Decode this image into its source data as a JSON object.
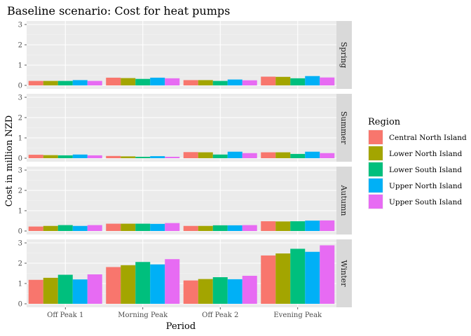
{
  "chart_data": {
    "type": "bar",
    "title": "Baseline scenario: Cost for heat pumps",
    "xlabel": "Period",
    "ylabel": "Cost in million NZD",
    "categories": [
      "Off Peak 1",
      "Morning Peak",
      "Off Peak 2",
      "Evening Peak"
    ],
    "facets": [
      "Spring",
      "Summer",
      "Autumn",
      "Winter"
    ],
    "legend_title": "Region",
    "legend_position": "right",
    "ylim": [
      0,
      3
    ],
    "yticks": [
      0,
      1,
      2,
      3
    ],
    "grid": true,
    "series": [
      {
        "name": "Central North Island",
        "color": "#F8766D",
        "values": {
          "Spring": [
            0.22,
            0.38,
            0.26,
            0.43
          ],
          "Summer": [
            0.17,
            0.11,
            0.3,
            0.29
          ],
          "Autumn": [
            0.22,
            0.36,
            0.25,
            0.48
          ],
          "Winter": [
            1.18,
            1.81,
            1.15,
            2.38
          ]
        }
      },
      {
        "name": "Lower North Island",
        "color": "#A3A500",
        "values": {
          "Spring": [
            0.22,
            0.36,
            0.26,
            0.42
          ],
          "Summer": [
            0.15,
            0.09,
            0.29,
            0.29
          ],
          "Autumn": [
            0.25,
            0.36,
            0.25,
            0.47
          ],
          "Winter": [
            1.28,
            1.9,
            1.22,
            2.48
          ]
        }
      },
      {
        "name": "Lower South Island",
        "color": "#00BF7D",
        "values": {
          "Spring": [
            0.22,
            0.32,
            0.22,
            0.35
          ],
          "Summer": [
            0.14,
            0.07,
            0.18,
            0.21
          ],
          "Autumn": [
            0.29,
            0.36,
            0.28,
            0.48
          ],
          "Winter": [
            1.43,
            2.06,
            1.31,
            2.71
          ]
        }
      },
      {
        "name": "Upper North Island",
        "color": "#00B0F6",
        "values": {
          "Spring": [
            0.26,
            0.38,
            0.29,
            0.46
          ],
          "Summer": [
            0.18,
            0.1,
            0.32,
            0.32
          ],
          "Autumn": [
            0.25,
            0.35,
            0.28,
            0.51
          ],
          "Winter": [
            1.2,
            1.94,
            1.21,
            2.56
          ]
        }
      },
      {
        "name": "Upper South Island",
        "color": "#E76BF3",
        "values": {
          "Spring": [
            0.22,
            0.35,
            0.25,
            0.39
          ],
          "Summer": [
            0.14,
            0.07,
            0.25,
            0.25
          ],
          "Autumn": [
            0.29,
            0.39,
            0.29,
            0.52
          ],
          "Winter": [
            1.45,
            2.2,
            1.38,
            2.88
          ]
        }
      }
    ]
  }
}
